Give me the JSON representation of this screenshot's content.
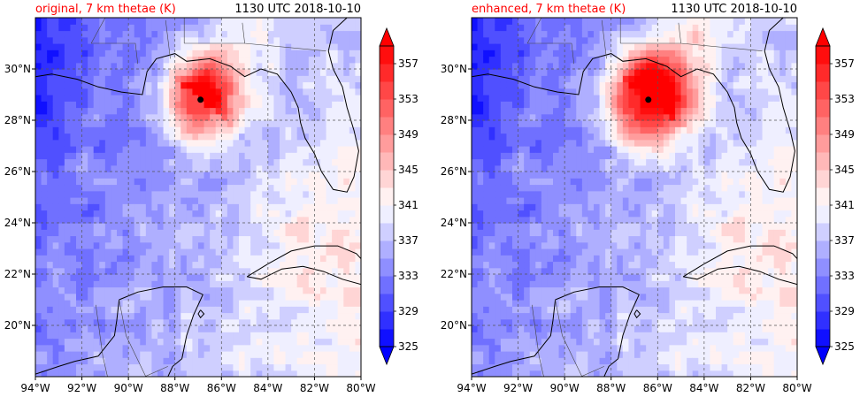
{
  "panels": [
    {
      "title": "original, 7 km thetae (K)",
      "time": "1130 UTC 2018-10-10",
      "center": {
        "lon": -86.9,
        "lat": 28.8
      },
      "core_strength": 1.0
    },
    {
      "title": "enhanced, 7 km thetae (K)",
      "time": "1130 UTC 2018-10-10",
      "center": {
        "lon": -86.4,
        "lat": 28.8
      },
      "core_strength": 1.25
    }
  ],
  "chart_data": {
    "type": "heatmap",
    "variable": "thetae",
    "units": "K",
    "lon_range": [
      -94,
      -80
    ],
    "lat_range": [
      18,
      32
    ],
    "x_ticks": [
      "94°W",
      "92°W",
      "90°W",
      "88°W",
      "86°W",
      "84°W",
      "82°W",
      "80°W"
    ],
    "y_ticks": [
      "20°N",
      "22°N",
      "24°N",
      "26°N",
      "28°N",
      "30°N"
    ],
    "y_tick_values": [
      20,
      22,
      24,
      26,
      28,
      30
    ],
    "x_tick_values": [
      -94,
      -92,
      -90,
      -88,
      -86,
      -84,
      -82,
      -80
    ],
    "grid": true,
    "grid_style": "dashed",
    "colorbar_levels": [
      325,
      327,
      329,
      331,
      333,
      335,
      337,
      339,
      341,
      343,
      345,
      347,
      349,
      351,
      353,
      355,
      357,
      359
    ],
    "colorbar_labels": [
      "325",
      "329",
      "333",
      "337",
      "341",
      "345",
      "349",
      "353",
      "357"
    ],
    "colormap": "bwr",
    "colors": {
      "low": "#0000ff",
      "mid": "#ffffff",
      "high": "#ff0000",
      "title_red": "#ff0000"
    }
  }
}
